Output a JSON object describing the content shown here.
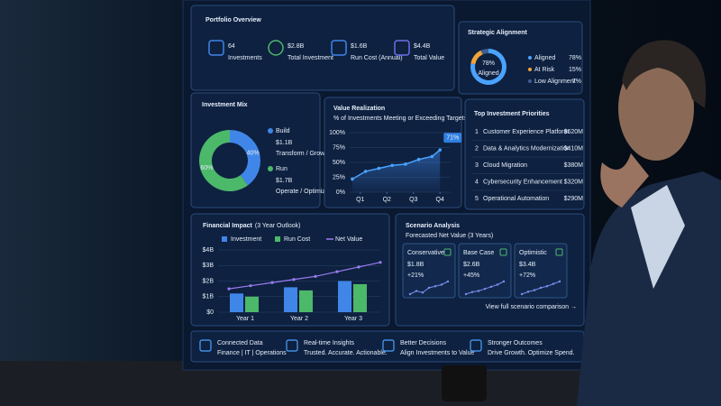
{
  "portfolio_overview": {
    "title": "Portfolio Overview",
    "kpis": [
      {
        "value": "64",
        "label": "Investments"
      },
      {
        "value": "$2.8B",
        "label": "Total Investment"
      },
      {
        "value": "$1.6B",
        "label": "Run Cost (Annual)"
      },
      {
        "value": "$4.4B",
        "label": "Total Value"
      }
    ]
  },
  "strategic_alignment": {
    "title": "Strategic Alignment",
    "segments": [
      {
        "name": "Aligned",
        "value": 78,
        "value_label": "78%",
        "color": "#4aa3ff"
      },
      {
        "name": "At Risk",
        "value": 15,
        "value_label": "15%",
        "color": "#f2a23a"
      },
      {
        "name": "Low Alignment",
        "value": 7,
        "value_label": "7%",
        "color": "#3d5f93"
      }
    ]
  },
  "investment_mix": {
    "title": "Investment Mix",
    "segments": [
      {
        "name": "Build",
        "value": 40,
        "value_label": "40%",
        "amount": "$1.1B",
        "description": "Transform / Grow",
        "color": "#3f86e8"
      },
      {
        "name": "Run",
        "value": 60,
        "value_label": "60%",
        "amount": "$1.7B",
        "description": "Operate / Optimize",
        "color": "#4cb86a"
      }
    ]
  },
  "value_realization": {
    "title": "Value Realization",
    "subtitle": "% of Investments Meeting or Exceeding Targets",
    "x": [
      0.7,
      1.2,
      1.7,
      2.2,
      2.7,
      3.2,
      3.7,
      4.0
    ],
    "values": [
      22,
      35,
      40,
      45,
      47,
      55,
      60,
      71
    ],
    "value_labels": [
      null,
      null,
      null,
      null,
      null,
      null,
      null,
      "71%"
    ],
    "color": "#4aa3ff",
    "xlim": [
      0.6,
      4.4
    ],
    "ylim": [
      0,
      100
    ],
    "xticks": [
      {
        "value": 1,
        "label": "Q1"
      },
      {
        "value": 2,
        "label": "Q2"
      },
      {
        "value": 3,
        "label": "Q3"
      },
      {
        "value": 4,
        "label": "Q4"
      }
    ],
    "yticks": [
      {
        "value": 0,
        "label": "0%"
      },
      {
        "value": 25,
        "label": "25%"
      },
      {
        "value": 50,
        "label": "50%"
      },
      {
        "value": 75,
        "label": "75%"
      },
      {
        "value": 100,
        "label": "100%"
      }
    ]
  },
  "top_priorities": {
    "title": "Top Investment Priorities",
    "rows": [
      {
        "rank": "1",
        "name": "Customer Experience Platform",
        "value": "$620M"
      },
      {
        "rank": "2",
        "name": "Data & Analytics Modernization",
        "value": "$410M"
      },
      {
        "rank": "3",
        "name": "Cloud Migration",
        "value": "$380M"
      },
      {
        "rank": "4",
        "name": "Cybersecurity Enhancement",
        "value": "$320M"
      },
      {
        "rank": "5",
        "name": "Operational Automation",
        "value": "$290M"
      }
    ]
  },
  "financial_impact": {
    "title": "Financial Impact",
    "title_note": "(3 Year Outlook)",
    "categories": [
      "Year 1",
      "Year 2",
      "Year 3"
    ],
    "series": [
      {
        "name": "Investment",
        "color": "#3f86e8",
        "values": [
          1.2,
          1.6,
          2.0
        ]
      },
      {
        "name": "Run Cost",
        "color": "#4cb86a",
        "values": [
          1.0,
          1.4,
          1.8
        ]
      },
      {
        "name": "Net Value",
        "color": "#9a7cf0",
        "x": [
          -0.3,
          0.1,
          0.5,
          0.9,
          1.3,
          1.7,
          2.1,
          2.5
        ],
        "values": [
          1.5,
          1.7,
          1.9,
          2.1,
          2.3,
          2.6,
          2.9,
          3.2
        ]
      }
    ],
    "ylim": [
      0,
      4
    ],
    "yticks": [
      {
        "value": 0,
        "label": "$0"
      },
      {
        "value": 1,
        "label": "$1B"
      },
      {
        "value": 2,
        "label": "$2B"
      },
      {
        "value": 3,
        "label": "$3B"
      },
      {
        "value": 4,
        "label": "$4B"
      }
    ]
  },
  "scenario_analysis": {
    "title": "Scenario Analysis",
    "subtitle": "Forecasted Net Value (3 Years)",
    "scenarios": [
      {
        "name": "Conservative",
        "value": "$1.8B",
        "change": "+21%",
        "trend": [
          1.0,
          1.2,
          1.1,
          1.4,
          1.5,
          1.6,
          1.8
        ]
      },
      {
        "name": "Base Case",
        "value": "$2.6B",
        "change": "+45%",
        "trend": [
          1.4,
          1.6,
          1.7,
          1.9,
          2.1,
          2.3,
          2.6
        ]
      },
      {
        "name": "Optimistic",
        "value": "$3.4B",
        "change": "+72%",
        "trend": [
          1.8,
          2.1,
          2.3,
          2.6,
          2.8,
          3.1,
          3.4
        ]
      }
    ],
    "link": "View full scenario comparison →"
  },
  "footer": {
    "items": [
      {
        "title": "Connected Data",
        "text": "Finance | IT | Operations"
      },
      {
        "title": "Real-time Insights",
        "text": "Trusted. Accurate. Actionable."
      },
      {
        "title": "Better Decisions",
        "text": "Align Investments to Value"
      },
      {
        "title": "Stronger Outcomes",
        "text": "Drive Growth. Optimize Spend."
      }
    ]
  }
}
